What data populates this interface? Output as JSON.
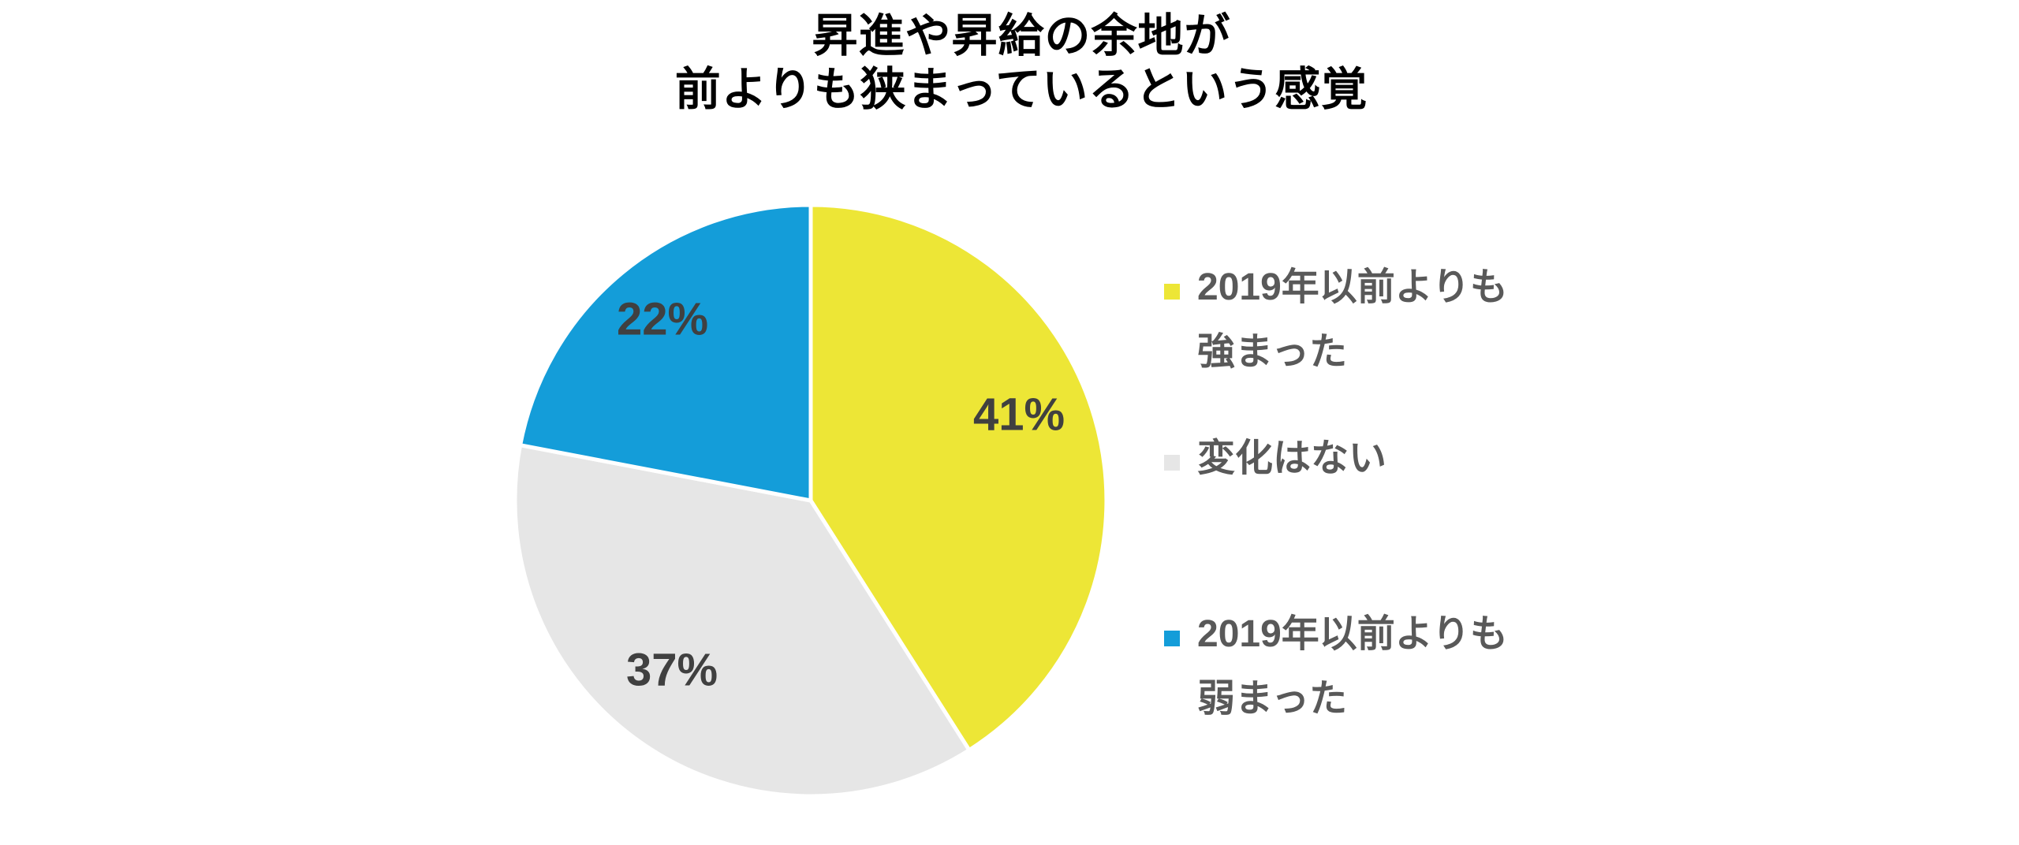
{
  "page": {
    "background": "#FFFFFF"
  },
  "title": {
    "line1": "昇進や昇給の余地が",
    "line2": "前よりも狭まっているという感覚"
  },
  "chart_data": {
    "type": "pie",
    "title": "昇進や昇給の余地が 前よりも狭まっているという感覚",
    "categories": [
      "2019年以前よりも強まった",
      "変化はない",
      "2019年以前よりも弱まった"
    ],
    "values": [
      41,
      37,
      22
    ],
    "unit": "%",
    "data_labels": [
      "41%",
      "37%",
      "22%"
    ],
    "colors": [
      "#EDE636",
      "#E6E6E6",
      "#149DD9"
    ],
    "start_angle_deg": 0,
    "direction": "clockwise",
    "legend_position": "right",
    "slice_border_color": "#FFFFFF",
    "label_color": "#404040",
    "legend_text_color": "#595959",
    "title_color": "#000000"
  },
  "legend": {
    "items": [
      {
        "line1": "2019年以前よりも",
        "line2": "強まった"
      },
      {
        "line1": "変化はない"
      },
      {
        "line1": "2019年以前よりも",
        "line2": "弱まった"
      }
    ]
  }
}
